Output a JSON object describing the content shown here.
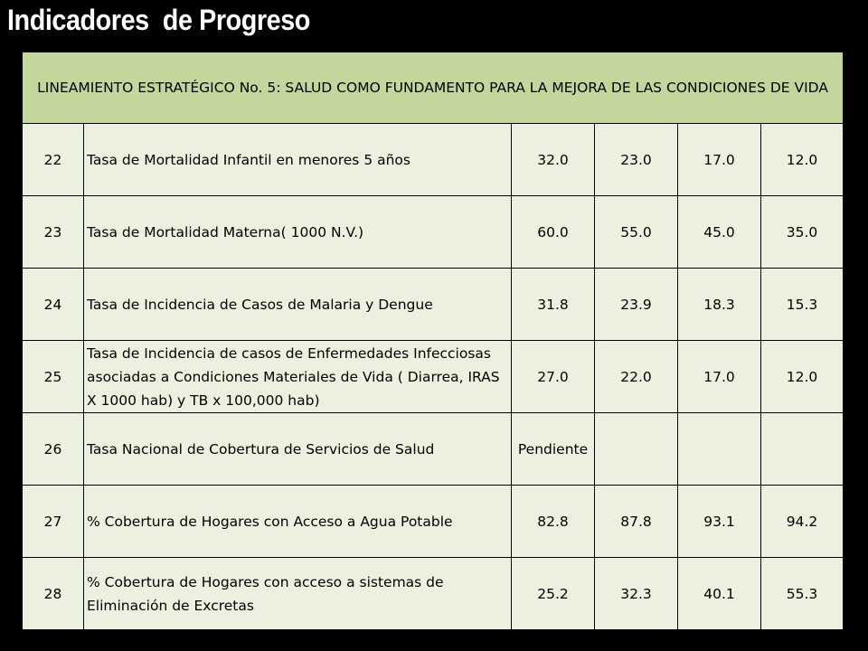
{
  "title": "Indicadores  de Progreso",
  "table": {
    "header": "LINEAMIENTO ESTRATÉGICO No. 5: SALUD COMO FUNDAMENTO PARA LA MEJORA DE LAS CONDICIONES DE VIDA",
    "rows": [
      {
        "num": "22",
        "desc": "Tasa de Mortalidad Infantil en menores 5 años",
        "v1": "32.0",
        "v2": "23.0",
        "v3": "17.0",
        "v4": "12.0"
      },
      {
        "num": "23",
        "desc": "Tasa de Mortalidad Materna( 1000 N.V.)",
        "v1": "60.0",
        "v2": "55.0",
        "v3": "45.0",
        "v4": "35.0"
      },
      {
        "num": "24",
        "desc": "Tasa de Incidencia de Casos de  Malaria y Dengue",
        "v1": "31.8",
        "v2": "23.9",
        "v3": "18.3",
        "v4": "15.3"
      },
      {
        "num": "25",
        "desc": "Tasa de Incidencia de casos de Enfermedades Infecciosas asociadas a Condiciones Materiales de Vida ( Diarrea, IRAS X 1000 hab) y TB x 100,000 hab)",
        "v1": "27.0",
        "v2": "22.0",
        "v3": "17.0",
        "v4": "12.0"
      },
      {
        "num": "26",
        "desc": "Tasa Nacional de Cobertura de Servicios de Salud",
        "v1": "Pendiente",
        "v2": "",
        "v3": "",
        "v4": ""
      },
      {
        "num": "27",
        "desc": "% Cobertura de Hogares con Acceso a Agua Potable",
        "v1": "82.8",
        "v2": "87.8",
        "v3": "93.1",
        "v4": "94.2"
      },
      {
        "num": "28",
        "desc": "% Cobertura de Hogares con acceso a sistemas de Eliminación de Excretas",
        "v1": "25.2",
        "v2": "32.3",
        "v3": "40.1",
        "v4": "55.3"
      }
    ]
  }
}
